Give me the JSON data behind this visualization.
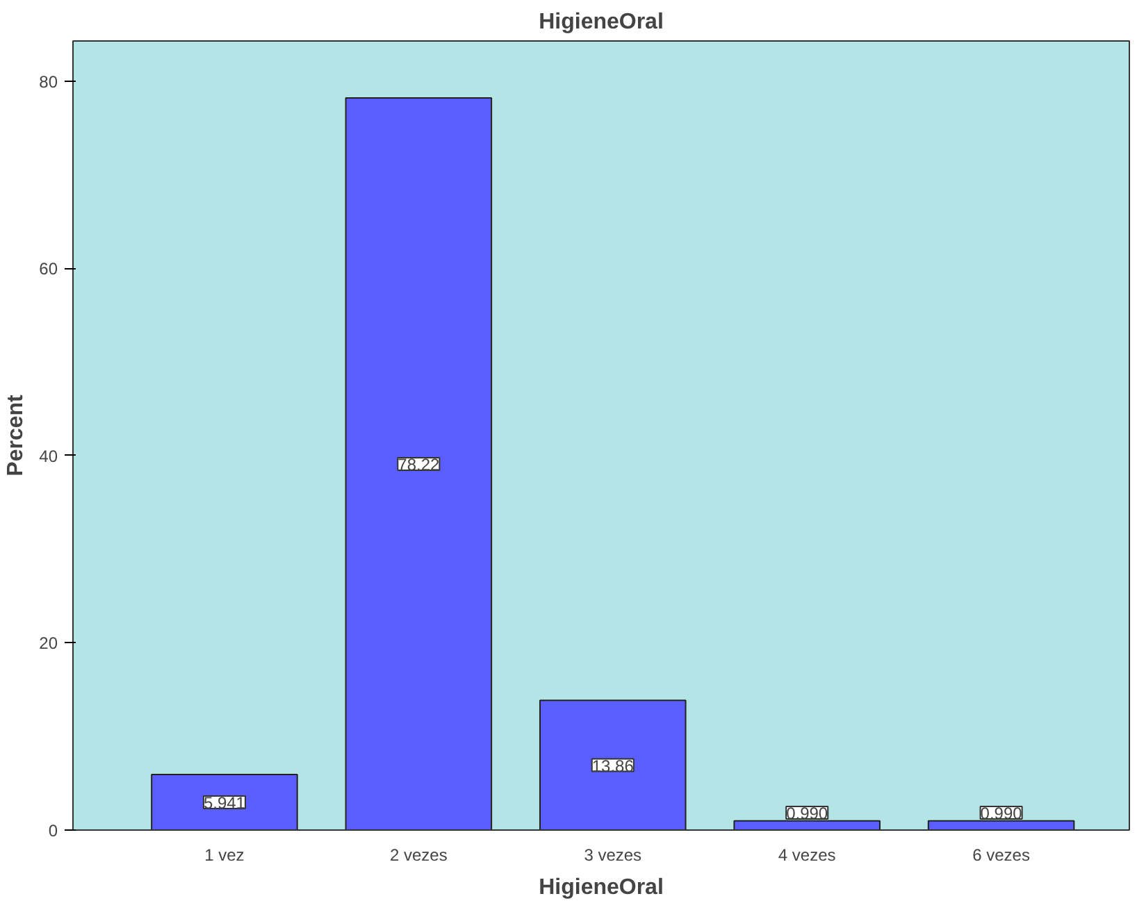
{
  "chart_data": {
    "type": "bar",
    "title": "HigieneOral",
    "xlabel": "HigieneOral",
    "ylabel": "Percent",
    "categories": [
      "1 vez",
      "2 vezes",
      "3 vezes",
      "4 vezes",
      "6 vezes"
    ],
    "values": [
      5.941,
      78.22,
      13.86,
      0.99,
      0.99
    ],
    "value_labels": [
      "5.941",
      "78.22",
      "13.86",
      "0.990",
      "0.990"
    ],
    "color": "#5a5eff",
    "ylim": [
      0,
      84.3
    ],
    "yticks": [
      0,
      20,
      40,
      60,
      80
    ],
    "grid": false
  }
}
